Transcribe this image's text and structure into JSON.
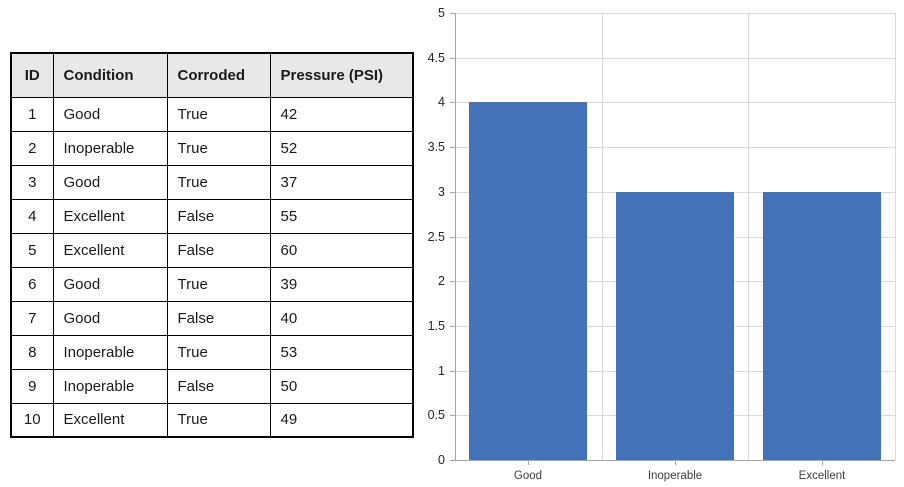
{
  "table": {
    "header_bg": "#e8e8e8",
    "headers": [
      "ID",
      "Condition",
      "Corroded",
      "Pressure (PSI)"
    ],
    "rows": [
      [
        "1",
        "Good",
        "True",
        "42"
      ],
      [
        "2",
        "Inoperable",
        "True",
        "52"
      ],
      [
        "3",
        "Good",
        "True",
        "37"
      ],
      [
        "4",
        "Excellent",
        "False",
        "55"
      ],
      [
        "5",
        "Excellent",
        "False",
        "60"
      ],
      [
        "6",
        "Good",
        "True",
        "39"
      ],
      [
        "7",
        "Good",
        "False",
        "40"
      ],
      [
        "8",
        "Inoperable",
        "True",
        "53"
      ],
      [
        "9",
        "Inoperable",
        "False",
        "50"
      ],
      [
        "10",
        "Excellent",
        "True",
        "49"
      ]
    ]
  },
  "chart_data": {
    "type": "bar",
    "categories": [
      "Good",
      "Inoperable",
      "Excellent"
    ],
    "values": [
      4,
      3,
      3
    ],
    "title": "",
    "xlabel": "",
    "ylabel": "",
    "ylim": [
      0,
      5
    ],
    "ytick_step": 0.5,
    "ytick_labels": [
      "0",
      "0.5",
      "1",
      "1.5",
      "2",
      "2.5",
      "3",
      "3.5",
      "4",
      "4.5",
      "5"
    ],
    "grid": true,
    "legend": "none",
    "bar_color": "#4472b8",
    "gridline_color": "#d9d9d9",
    "axis_color": "#a6a6a6"
  }
}
